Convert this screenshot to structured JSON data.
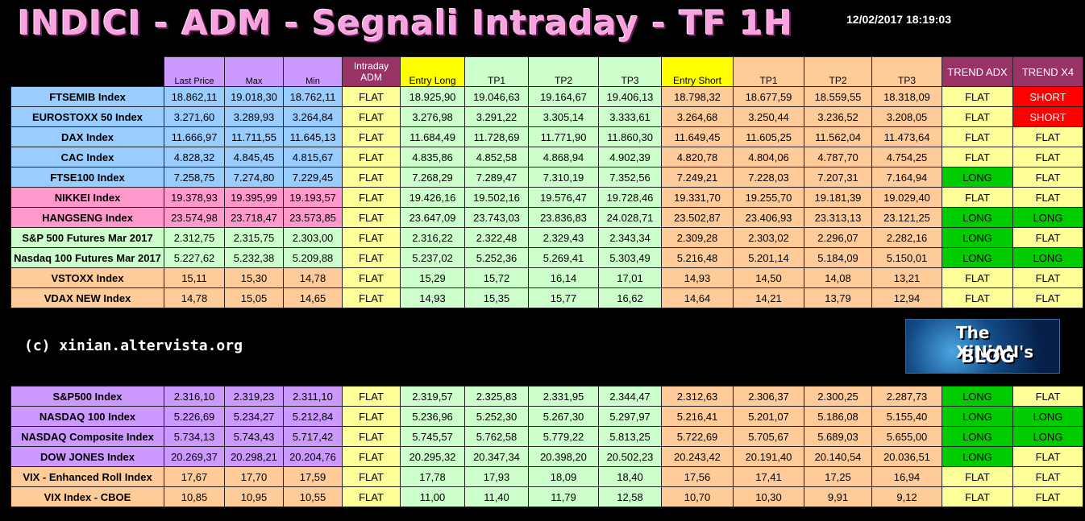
{
  "title": "INDICI - ADM - Segnali Intraday - TF 1H",
  "timestamp": "12/02/2017 18:19:03",
  "copyright": "(c) xinian.altervista.org",
  "logo": {
    "line1": "The XiNiAN's",
    "line2": "BLOG"
  },
  "headers": [
    "",
    "Last Price",
    "Max",
    "Min",
    "Intraday ADM",
    "Entry Long",
    "TP1",
    "TP2",
    "TP3",
    "Entry Short",
    "TP1",
    "TP2",
    "TP3",
    "TREND ADX",
    "TREND X4"
  ],
  "colors": {
    "blue": "#99ccff",
    "pink": "#ff99cc",
    "lightgreen": "#ccffcc",
    "orange": "#ffcc99",
    "purple": "#cc99ff",
    "yellow": "#ffff99",
    "brightyellow": "#ffff00",
    "green": "#00cc00",
    "red": "#ff0000",
    "maroon": "#993366"
  },
  "table1": [
    {
      "group": "blue",
      "name": "FTSEMIB Index",
      "last": "18.862,11",
      "max": "19.018,30",
      "min": "18.762,11",
      "adm": "FLAT",
      "el": "18.925,90",
      "tp1": "19.046,63",
      "tp2": "19.164,67",
      "tp3": "19.406,13",
      "es": "18.798,32",
      "stp1": "18.677,59",
      "stp2": "18.559,55",
      "stp3": "18.318,09",
      "adx": "FLAT",
      "x4": "SHORT"
    },
    {
      "group": "blue",
      "name": "EUROSTOXX 50 Index",
      "last": "3.271,60",
      "max": "3.289,93",
      "min": "3.264,84",
      "adm": "FLAT",
      "el": "3.276,98",
      "tp1": "3.291,22",
      "tp2": "3.305,14",
      "tp3": "3.333,61",
      "es": "3.264,68",
      "stp1": "3.250,44",
      "stp2": "3.236,52",
      "stp3": "3.208,05",
      "adx": "FLAT",
      "x4": "SHORT"
    },
    {
      "group": "blue",
      "name": "DAX Index",
      "last": "11.666,97",
      "max": "11.711,55",
      "min": "11.645,13",
      "adm": "FLAT",
      "el": "11.684,49",
      "tp1": "11.728,69",
      "tp2": "11.771,90",
      "tp3": "11.860,30",
      "es": "11.649,45",
      "stp1": "11.605,25",
      "stp2": "11.562,04",
      "stp3": "11.473,64",
      "adx": "FLAT",
      "x4": "FLAT"
    },
    {
      "group": "blue",
      "name": "CAC Index",
      "last": "4.828,32",
      "max": "4.845,45",
      "min": "4.815,67",
      "adm": "FLAT",
      "el": "4.835,86",
      "tp1": "4.852,58",
      "tp2": "4.868,94",
      "tp3": "4.902,39",
      "es": "4.820,78",
      "stp1": "4.804,06",
      "stp2": "4.787,70",
      "stp3": "4.754,25",
      "adx": "FLAT",
      "x4": "FLAT"
    },
    {
      "group": "blue",
      "name": "FTSE100 Index",
      "last": "7.258,75",
      "max": "7.274,80",
      "min": "7.229,45",
      "adm": "FLAT",
      "el": "7.268,29",
      "tp1": "7.289,47",
      "tp2": "7.310,19",
      "tp3": "7.352,56",
      "es": "7.249,21",
      "stp1": "7.228,03",
      "stp2": "7.207,31",
      "stp3": "7.164,94",
      "adx": "LONG",
      "x4": "FLAT"
    },
    {
      "group": "pink",
      "name": "NIKKEI Index",
      "last": "19.378,93",
      "max": "19.395,99",
      "min": "19.193,57",
      "adm": "FLAT",
      "el": "19.426,16",
      "tp1": "19.502,16",
      "tp2": "19.576,47",
      "tp3": "19.728,46",
      "es": "19.331,70",
      "stp1": "19.255,70",
      "stp2": "19.181,39",
      "stp3": "19.029,40",
      "adx": "FLAT",
      "x4": "FLAT"
    },
    {
      "group": "pink",
      "name": "HANGSENG Index",
      "last": "23.574,98",
      "max": "23.718,47",
      "min": "23.573,85",
      "adm": "FLAT",
      "el": "23.647,09",
      "tp1": "23.743,03",
      "tp2": "23.836,83",
      "tp3": "24.028,71",
      "es": "23.502,87",
      "stp1": "23.406,93",
      "stp2": "23.313,13",
      "stp3": "23.121,25",
      "adx": "LONG",
      "x4": "LONG"
    },
    {
      "group": "lightgreen",
      "name": "S&P 500 Futures Mar 2017",
      "last": "2.312,75",
      "max": "2.315,75",
      "min": "2.303,00",
      "adm": "FLAT",
      "el": "2.316,22",
      "tp1": "2.322,48",
      "tp2": "2.329,43",
      "tp3": "2.343,34",
      "es": "2.309,28",
      "stp1": "2.303,02",
      "stp2": "2.296,07",
      "stp3": "2.282,16",
      "adx": "LONG",
      "x4": "FLAT"
    },
    {
      "group": "lightgreen",
      "name": "Nasdaq 100 Futures Mar 2017",
      "last": "5.227,62",
      "max": "5.232,38",
      "min": "5.209,88",
      "adm": "FLAT",
      "el": "5.237,02",
      "tp1": "5.252,36",
      "tp2": "5.269,41",
      "tp3": "5.303,49",
      "es": "5.216,48",
      "stp1": "5.201,14",
      "stp2": "5.184,09",
      "stp3": "5.150,01",
      "adx": "LONG",
      "x4": "LONG"
    },
    {
      "group": "orange",
      "name": "VSTOXX Index",
      "last": "15,11",
      "max": "15,30",
      "min": "14,78",
      "adm": "FLAT",
      "el": "15,29",
      "tp1": "15,72",
      "tp2": "16,14",
      "tp3": "17,01",
      "es": "14,93",
      "stp1": "14,50",
      "stp2": "14,08",
      "stp3": "13,21",
      "adx": "FLAT",
      "x4": "FLAT"
    },
    {
      "group": "orange",
      "name": "VDAX NEW Index",
      "last": "14,78",
      "max": "15,05",
      "min": "14,65",
      "adm": "FLAT",
      "el": "14,93",
      "tp1": "15,35",
      "tp2": "15,77",
      "tp3": "16,62",
      "es": "14,64",
      "stp1": "14,21",
      "stp2": "13,79",
      "stp3": "12,94",
      "adx": "FLAT",
      "x4": "FLAT"
    }
  ],
  "table2": [
    {
      "group": "purple",
      "name": "S&P500 Index",
      "last": "2.316,10",
      "max": "2.319,23",
      "min": "2.311,10",
      "adm": "FLAT",
      "el": "2.319,57",
      "tp1": "2.325,83",
      "tp2": "2.331,95",
      "tp3": "2.344,47",
      "es": "2.312,63",
      "stp1": "2.306,37",
      "stp2": "2.300,25",
      "stp3": "2.287,73",
      "adx": "LONG",
      "x4": "FLAT"
    },
    {
      "group": "purple",
      "name": "NASDAQ 100 Index",
      "last": "5.226,69",
      "max": "5.234,27",
      "min": "5.212,84",
      "adm": "FLAT",
      "el": "5.236,96",
      "tp1": "5.252,30",
      "tp2": "5.267,30",
      "tp3": "5.297,97",
      "es": "5.216,41",
      "stp1": "5.201,07",
      "stp2": "5.186,08",
      "stp3": "5.155,40",
      "adx": "LONG",
      "x4": "LONG"
    },
    {
      "group": "purple",
      "name": "NASDAQ Composite Index",
      "last": "5.734,13",
      "max": "5.743,43",
      "min": "5.717,42",
      "adm": "FLAT",
      "el": "5.745,57",
      "tp1": "5.762,58",
      "tp2": "5.779,22",
      "tp3": "5.813,25",
      "es": "5.722,69",
      "stp1": "5.705,67",
      "stp2": "5.689,03",
      "stp3": "5.655,00",
      "adx": "LONG",
      "x4": "LONG"
    },
    {
      "group": "purple",
      "name": "DOW JONES Index",
      "last": "20.269,37",
      "max": "20.298,21",
      "min": "20.204,76",
      "adm": "FLAT",
      "el": "20.295,32",
      "tp1": "20.347,34",
      "tp2": "20.398,20",
      "tp3": "20.502,23",
      "es": "20.243,42",
      "stp1": "20.191,40",
      "stp2": "20.140,54",
      "stp3": "20.036,51",
      "adx": "LONG",
      "x4": "FLAT"
    },
    {
      "group": "orange",
      "name": "VIX - Enhanced Roll Index",
      "last": "17,67",
      "max": "17,70",
      "min": "17,59",
      "adm": "FLAT",
      "el": "17,78",
      "tp1": "17,93",
      "tp2": "18,09",
      "tp3": "18,40",
      "es": "17,56",
      "stp1": "17,41",
      "stp2": "17,25",
      "stp3": "16,94",
      "adx": "FLAT",
      "x4": "FLAT"
    },
    {
      "group": "orange",
      "name": "VIX Index - CBOE",
      "last": "10,85",
      "max": "10,95",
      "min": "10,55",
      "adm": "FLAT",
      "el": "11,00",
      "tp1": "11,40",
      "tp2": "11,79",
      "tp3": "12,58",
      "es": "10,70",
      "stp1": "10,30",
      "stp2": "9,91",
      "stp3": "9,12",
      "adx": "FLAT",
      "x4": "FLAT"
    }
  ]
}
